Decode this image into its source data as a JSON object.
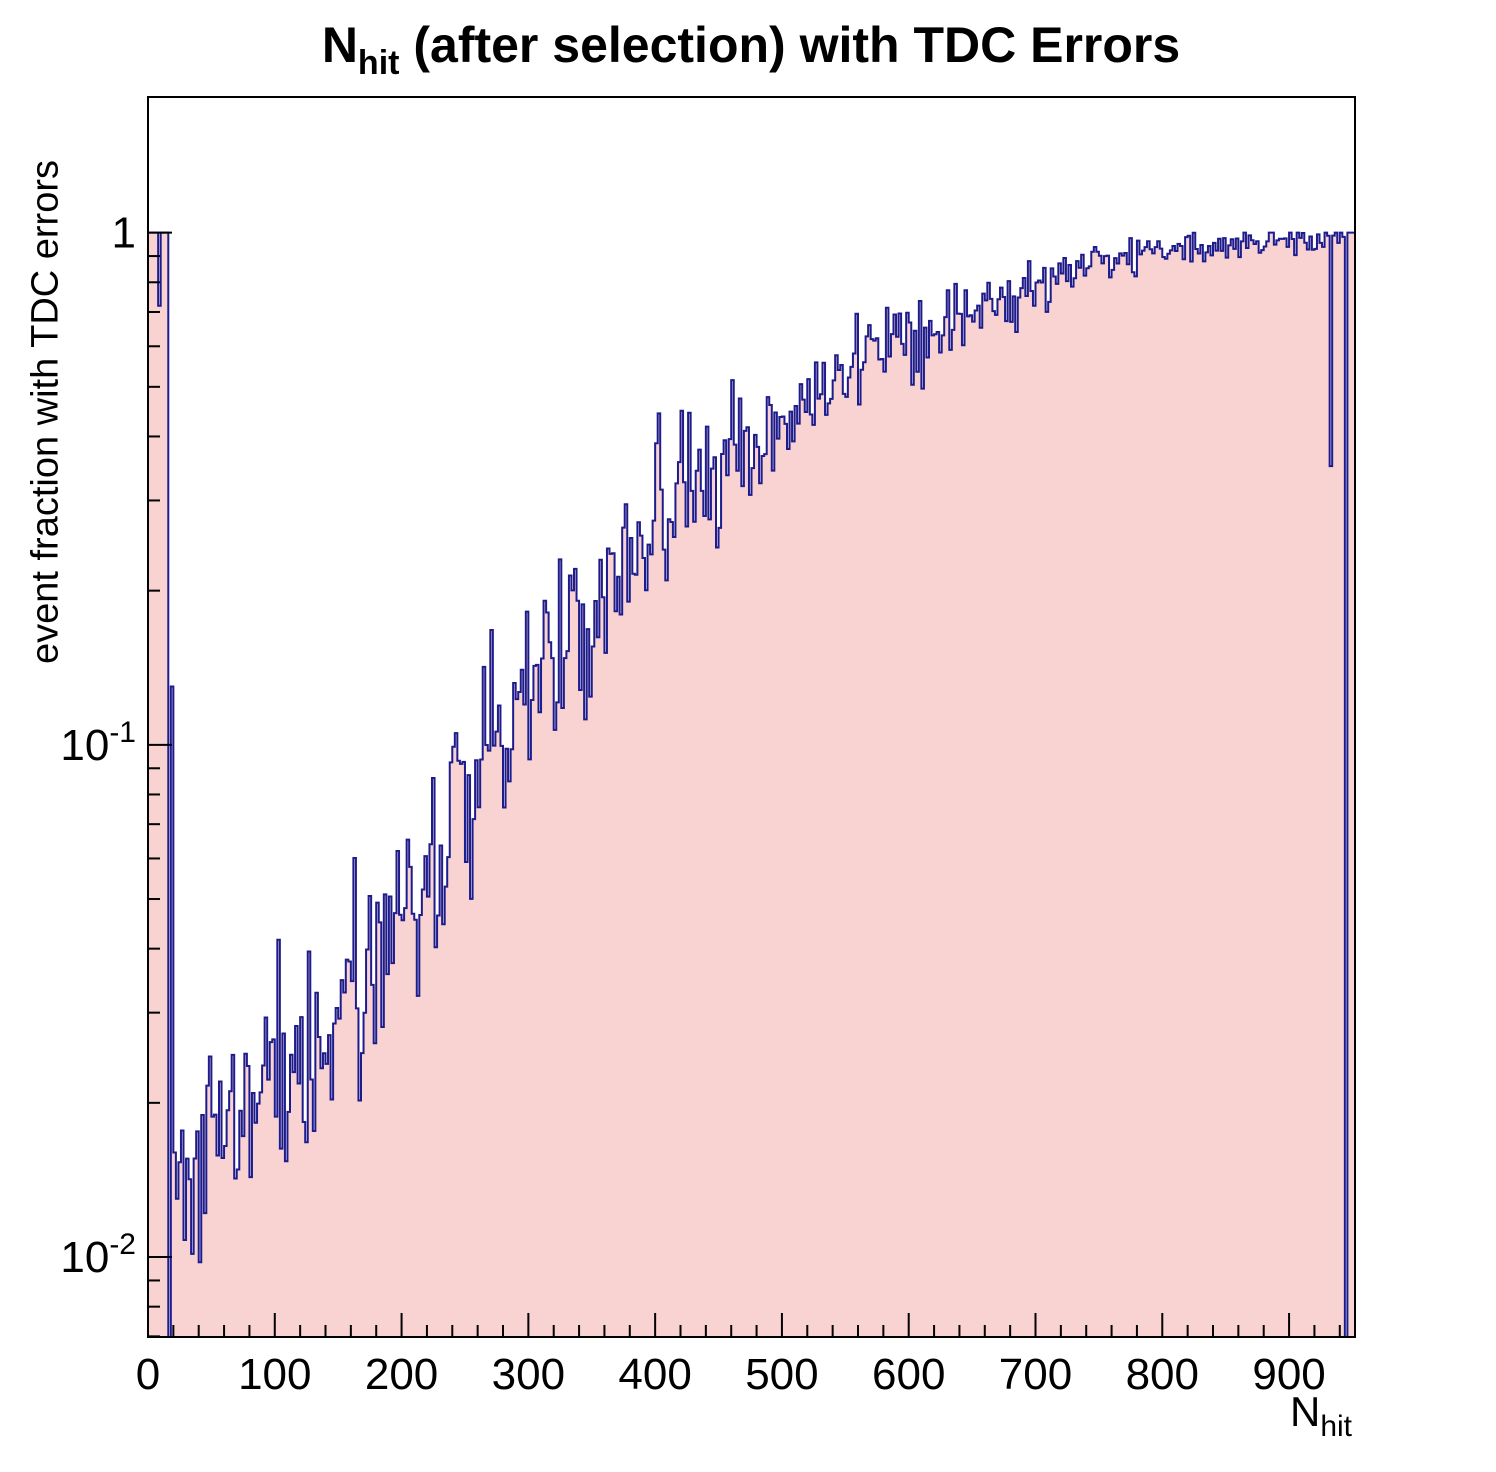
{
  "page": {
    "background": "#ffffff"
  },
  "title": {
    "prefix": "N",
    "subscript": "hit",
    "suffix": " (after selection) with TDC Errors"
  },
  "axes": {
    "y": {
      "label": "event fraction with TDC errors",
      "scale": "log",
      "major_ticks": [
        {
          "value": 1,
          "mantissa": "1",
          "exponent": ""
        },
        {
          "value": 0.1,
          "mantissa": "10",
          "exponent": "-1"
        },
        {
          "value": 0.01,
          "mantissa": "10",
          "exponent": "-2"
        }
      ]
    },
    "x": {
      "label_main": "N",
      "label_subscript": "hit",
      "major_ticks": [
        0,
        100,
        200,
        300,
        400,
        500,
        600,
        700,
        800,
        900
      ],
      "minor_step": 20
    }
  },
  "style": {
    "fill_color": "#f9d2d2",
    "line_color": "#1c1c8c",
    "axis_color": "#000000",
    "background": "#ffffff"
  },
  "chart_data": {
    "type": "bar",
    "title": "N_hit (after selection) with TDC Errors",
    "xlabel": "N_hit",
    "ylabel": "event fraction with TDC errors",
    "xlim": [
      0,
      952
    ],
    "ylog": true,
    "ylim": [
      0.00698,
      1.84
    ],
    "bin_width": 2,
    "trend_points": [
      [
        20,
        0.014
      ],
      [
        26,
        0.0155
      ],
      [
        40,
        0.018
      ],
      [
        60,
        0.019
      ],
      [
        80,
        0.0205
      ],
      [
        100,
        0.022
      ],
      [
        120,
        0.0245
      ],
      [
        140,
        0.028
      ],
      [
        160,
        0.032
      ],
      [
        180,
        0.038
      ],
      [
        200,
        0.047
      ],
      [
        220,
        0.056
      ],
      [
        240,
        0.068
      ],
      [
        260,
        0.085
      ],
      [
        280,
        0.105
      ],
      [
        300,
        0.125
      ],
      [
        320,
        0.15
      ],
      [
        340,
        0.185
      ],
      [
        360,
        0.21
      ],
      [
        380,
        0.24
      ],
      [
        400,
        0.27
      ],
      [
        420,
        0.3
      ],
      [
        440,
        0.34
      ],
      [
        460,
        0.385
      ],
      [
        480,
        0.42
      ],
      [
        500,
        0.46
      ],
      [
        520,
        0.5
      ],
      [
        540,
        0.53
      ],
      [
        560,
        0.56
      ],
      [
        580,
        0.6
      ],
      [
        600,
        0.63
      ],
      [
        620,
        0.66
      ],
      [
        640,
        0.7
      ],
      [
        660,
        0.73
      ],
      [
        680,
        0.76
      ],
      [
        700,
        0.79
      ],
      [
        720,
        0.82
      ],
      [
        740,
        0.855
      ],
      [
        760,
        0.885
      ],
      [
        780,
        0.91
      ],
      [
        800,
        0.93
      ],
      [
        820,
        0.945
      ],
      [
        840,
        0.955
      ],
      [
        860,
        0.965
      ],
      [
        880,
        0.97
      ],
      [
        900,
        0.975
      ],
      [
        920,
        0.975
      ],
      [
        952,
        0.98
      ]
    ],
    "special_bins": [
      [
        0,
        16,
        1.0
      ],
      [
        8,
        10,
        0.72
      ],
      [
        16,
        18,
        0.00698
      ],
      [
        18,
        20,
        0.13
      ],
      [
        20,
        22,
        0.016
      ],
      [
        932,
        934,
        0.35
      ],
      [
        944,
        946,
        0.00698
      ],
      [
        946,
        952,
        1.0
      ]
    ],
    "noise": {
      "seed": 1337,
      "base": 0.22,
      "pow": 1.2,
      "min": 0.03
    }
  }
}
